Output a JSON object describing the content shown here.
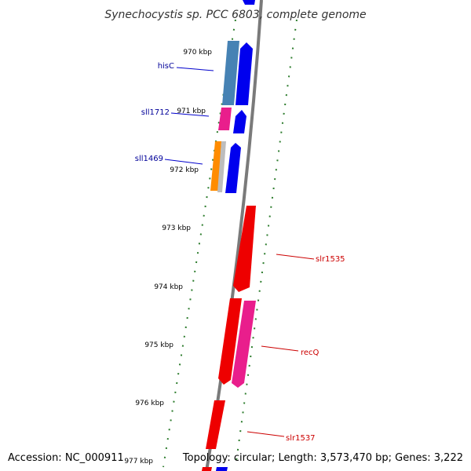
{
  "title": "Synechocystis sp. PCC 6803, complete genome",
  "footer": {
    "accession": "Accession: NC_000911",
    "summary": "Topology: circular; Length: 3,573,470 bp; Genes: 3,222"
  },
  "colors": {
    "backbone": "#7a7a7a",
    "tick": "#2e7d2e",
    "forward_gene": "#0000ee",
    "reverse_gene": "#ee0000",
    "forward_label": "#000099",
    "reverse_label": "#cc0000"
  },
  "axis": {
    "unit": "kbp",
    "tick_labels": [
      "970 kbp",
      "971 kbp",
      "972 kbp",
      "973 kbp",
      "974 kbp",
      "975 kbp",
      "976 kbp",
      "977 kbp"
    ]
  },
  "genes": [
    {
      "label": "hisC",
      "strand": "forward"
    },
    {
      "label": "sll1712",
      "strand": "forward"
    },
    {
      "label": "sll1469",
      "strand": "forward"
    },
    {
      "label": "slr1535",
      "strand": "reverse"
    },
    {
      "label": "recQ",
      "strand": "reverse"
    },
    {
      "label": "slr1537",
      "strand": "reverse"
    }
  ]
}
